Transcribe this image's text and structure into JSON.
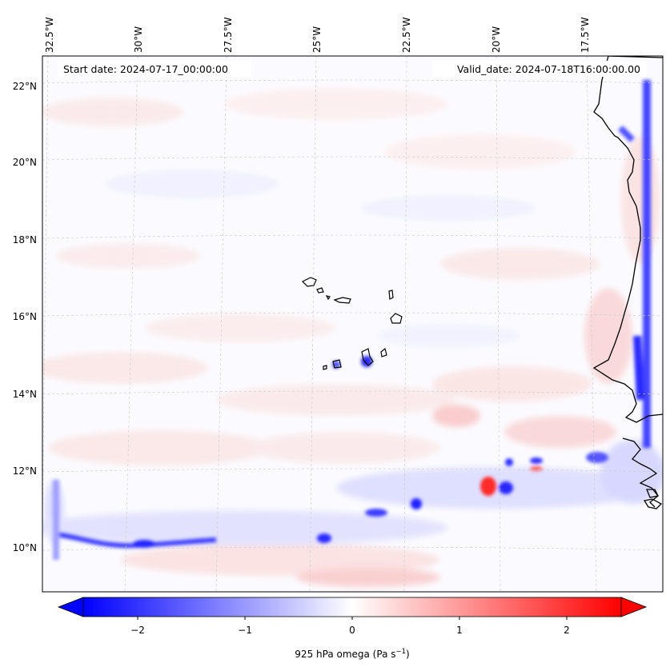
{
  "map": {
    "start_label": "Start date: 2024-07-17_00:00:00",
    "valid_label": "Valid_date: 2024-07-18T16:00:00.00",
    "lon_labels": [
      "32.5°W",
      "30°W",
      "27.5°W",
      "25°W",
      "22.5°W",
      "20°W",
      "17.5°W"
    ],
    "lat_labels": [
      "22°N",
      "20°N",
      "18°N",
      "16°N",
      "14°N",
      "12°N",
      "10°N"
    ],
    "colors": {
      "negative_max": "#0000ff",
      "positive_max": "#ff0000",
      "zero": "#ffffff",
      "coast": "#000000",
      "grid": "#b0b0b0"
    }
  },
  "colorbar": {
    "label": "925 hPa omega (Pa s",
    "label_sup": "−1",
    "label_end": ")",
    "ticks": [
      "−2",
      "−1",
      "0",
      "1",
      "2"
    ],
    "range": [
      -2.5,
      2.5
    ]
  }
}
